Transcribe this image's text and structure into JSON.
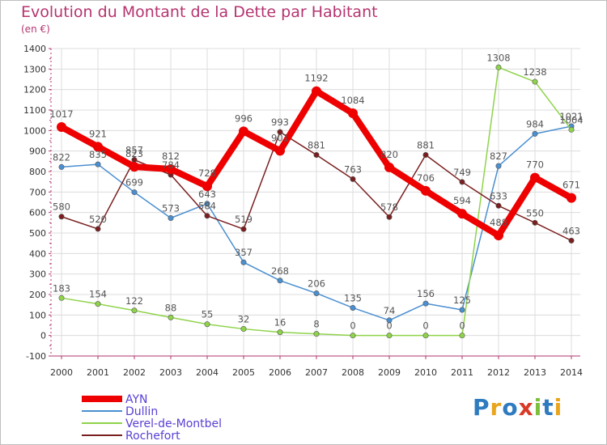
{
  "title": "Evolution du Montant de la Dette par Habitant",
  "unit": "(en €)",
  "logo": {
    "text": "Proxiti",
    "letters": [
      "P",
      "r",
      "o",
      "x",
      "i",
      "t",
      "i"
    ],
    "colors": [
      "#2e7bbf",
      "#e9a51c",
      "#2e7bbf",
      "#d93a25",
      "#7cbf3a",
      "#2e7bbf",
      "#e9a51c"
    ]
  },
  "chart_data": {
    "type": "line",
    "x": [
      "2000",
      "2001",
      "2002",
      "2003",
      "2004",
      "2005",
      "2006",
      "2007",
      "2008",
      "2009",
      "2010",
      "2011",
      "2012",
      "2013",
      "2014"
    ],
    "ylim": [
      -100,
      1400
    ],
    "yticks": [
      "-100",
      "0",
      "100",
      "200",
      "300",
      "400",
      "500",
      "600",
      "700",
      "800",
      "900",
      "1000",
      "1100",
      "1200",
      "1300",
      "1400"
    ],
    "grid": true,
    "legend_position": "bottom-left",
    "series": [
      {
        "name": "Dullin",
        "color": "#4a8fd1",
        "values": [
          822,
          835,
          699,
          573,
          643,
          357,
          268,
          206,
          135,
          74,
          156,
          125,
          827,
          984,
          1021
        ],
        "labels": [
          "822",
          "835",
          "699",
          "573",
          "643",
          "357",
          "268",
          "206",
          "135",
          "74",
          "156",
          "125",
          "827",
          "984",
          "1021"
        ]
      },
      {
        "name": "Verel-de-Montbel",
        "color": "#8fd34a",
        "values": [
          183,
          154,
          122,
          88,
          55,
          32,
          16,
          8,
          0,
          0,
          0,
          0,
          1308,
          1238,
          1004
        ],
        "labels": [
          "183",
          "154",
          "122",
          "88",
          "55",
          "32",
          "16",
          "8",
          "0",
          "0",
          "0",
          "0",
          "1308",
          "1238",
          "1004"
        ]
      },
      {
        "name": "Rochefort",
        "color": "#7a1f1f",
        "values": [
          580,
          520,
          857,
          784,
          584,
          519,
          993,
          881,
          763,
          578,
          881,
          749,
          633,
          550,
          463
        ],
        "labels": [
          "580",
          "520",
          "857",
          "784",
          "584",
          "519",
          "993",
          "881",
          "763",
          "578",
          "881",
          "749",
          "633",
          "550",
          "463"
        ]
      },
      {
        "name": "AYN",
        "color": "#ee0000",
        "values": [
          1017,
          921,
          823,
          812,
          728,
          996,
          901,
          1192,
          1084,
          820,
          706,
          594,
          488,
          770,
          671
        ],
        "labels": [
          "1017",
          "921",
          "823",
          "812",
          "728",
          "996",
          "901",
          "1192",
          "1084",
          "820",
          "706",
          "594",
          "488",
          "770",
          "671"
        ]
      }
    ],
    "legend": [
      {
        "name": "AYN",
        "color": "#ee0000"
      },
      {
        "name": "Dullin",
        "color": "#4a8fd1"
      },
      {
        "name": "Verel-de-Montbel",
        "color": "#8fd34a"
      },
      {
        "name": "Rochefort",
        "color": "#7a1f1f"
      }
    ]
  }
}
